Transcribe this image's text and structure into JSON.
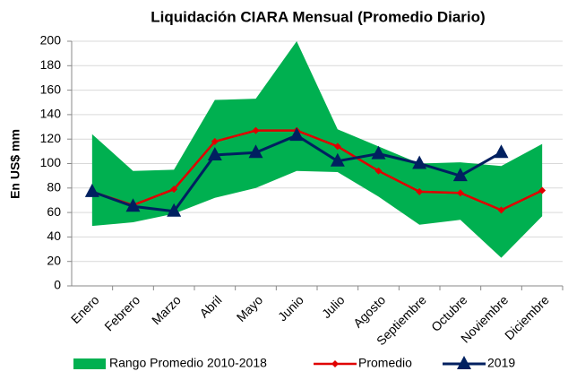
{
  "chart_data": {
    "type": "line",
    "title": "Liquidación  CIARA Mensual (Promedio Diario)",
    "y_label": "En US$ mm",
    "categories": [
      "Enero",
      "Febrero",
      "Marzo",
      "Abril",
      "Mayo",
      "Junio",
      "Julio",
      "Agosto",
      "Septiembre",
      "Octubre",
      "Noviembre",
      "Diciembre"
    ],
    "band": {
      "name": "Rango Promedio 2010-2018",
      "color": "#00b050",
      "upper": [
        124,
        94,
        95,
        152,
        153,
        200,
        128,
        114,
        100,
        101,
        98,
        116
      ],
      "lower": [
        49,
        52,
        59,
        72,
        80,
        94,
        93,
        73,
        50,
        54,
        23,
        57
      ]
    },
    "series": [
      {
        "name": "Promedio",
        "color": "#e00000",
        "marker": "diamond",
        "values": [
          77,
          66,
          79,
          118,
          127,
          127,
          114,
          94,
          77,
          76,
          62,
          78
        ]
      },
      {
        "name": "2019",
        "color": "#002060",
        "marker": "triangle",
        "values": [
          77,
          65,
          61,
          107,
          109,
          123,
          102,
          108,
          100,
          90,
          109,
          null
        ]
      }
    ],
    "ylim": [
      0,
      200
    ],
    "yticks": [
      0,
      20,
      40,
      60,
      80,
      100,
      120,
      140,
      160,
      180,
      200
    ],
    "grid": true
  }
}
